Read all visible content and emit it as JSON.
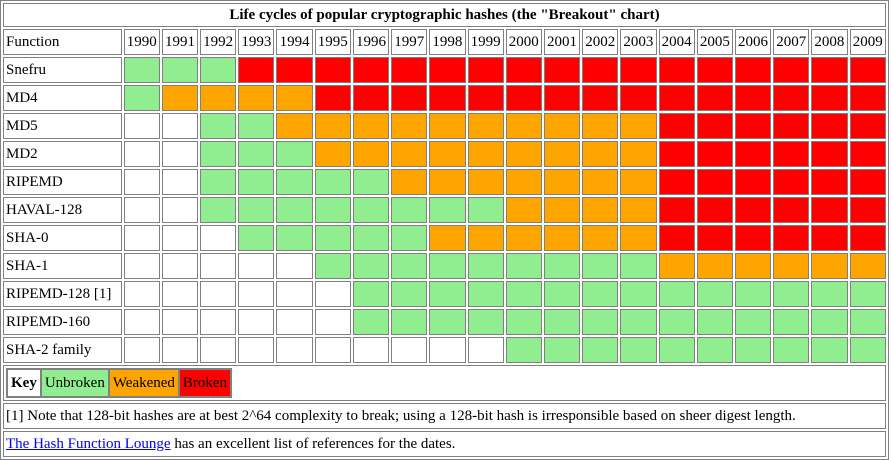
{
  "title": "Life cycles of popular cryptographic hashes (the \"Breakout\" chart)",
  "header_label": "Function",
  "years": [
    "1990",
    "1991",
    "1992",
    "1993",
    "1994",
    "1995",
    "1996",
    "1997",
    "1998",
    "1999",
    "2000",
    "2001",
    "2002",
    "2003",
    "2004",
    "2005",
    "2006",
    "2007",
    "2008",
    "2009"
  ],
  "colors": {
    "unbroken": "#90ee90",
    "weakened": "#ffa500",
    "broken": "#ff0000",
    "none": "#ffffff"
  },
  "rows": [
    {
      "name": "Snefru",
      "status": "UUUBBBBBBBBBBBBBBBBB"
    },
    {
      "name": "MD4",
      "status": "UWWWWBBBBBBBBBBBBBBB"
    },
    {
      "name": "MD5",
      "status": "00UUWWWWWWWWWWBBBBBB"
    },
    {
      "name": "MD2",
      "status": "00UUUWWWWWWWWWBBBBBB"
    },
    {
      "name": "RIPEMD",
      "status": "00UUUUUWWWWWWWBBBBBB"
    },
    {
      "name": "HAVAL-128",
      "status": "00UUUUUUUUWWWWBBBBBB"
    },
    {
      "name": "SHA-0",
      "status": "000UUUUUWWWWWWBBBBBB"
    },
    {
      "name": "SHA-1",
      "status": "00000UUUUUUUUUWWWWWW"
    },
    {
      "name": "RIPEMD-128 [1]",
      "status": "000000UUUUUUUUUUUUUU"
    },
    {
      "name": "RIPEMD-160",
      "status": "000000UUUUUUUUUUUUUU"
    },
    {
      "name": "SHA-2 family",
      "status": "0000000000UUUUUUUUUU"
    }
  ],
  "key": {
    "label": "Key",
    "unbroken": "Unbroken",
    "weakened": "Weakened",
    "broken": "Broken"
  },
  "footnote": "[1] Note that 128-bit hashes are at best 2^64 complexity to break; using a 128-bit hash is irresponsible based on sheer digest length.",
  "reference": {
    "link_text": "The Hash Function Lounge",
    "rest_text": " has an excellent list of references for the dates."
  }
}
